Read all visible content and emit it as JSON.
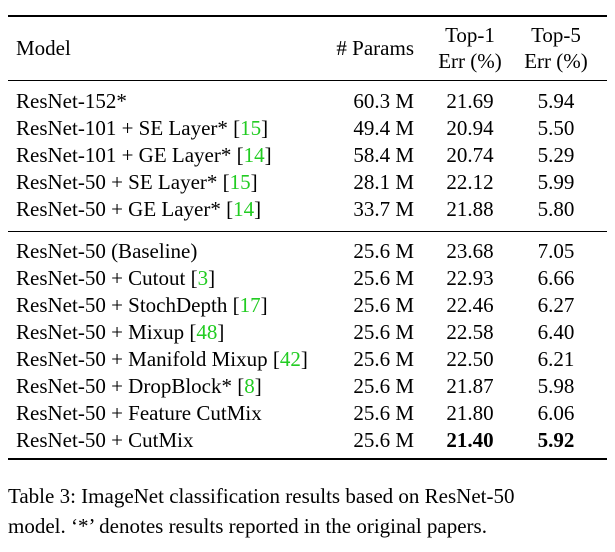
{
  "table": {
    "headers": {
      "model": "Model",
      "params": "# Params",
      "top1_line1": "Top-1",
      "top1_line2": "Err (%)",
      "top5_line1": "Top-5",
      "top5_line2": "Err (%)"
    },
    "groups": [
      [
        {
          "name": "ResNet-152*",
          "cite": "",
          "params": "60.3 M",
          "top1": "21.69",
          "top5": "5.94",
          "bold": false
        },
        {
          "name": "ResNet-101 + SE Layer*",
          "cite": "15",
          "params": "49.4 M",
          "top1": "20.94",
          "top5": "5.50",
          "bold": false
        },
        {
          "name": "ResNet-101 + GE Layer*",
          "cite": "14",
          "params": "58.4 M",
          "top1": "20.74",
          "top5": "5.29",
          "bold": false
        },
        {
          "name": "ResNet-50 + SE Layer*",
          "cite": "15",
          "params": "28.1 M",
          "top1": "22.12",
          "top5": "5.99",
          "bold": false
        },
        {
          "name": "ResNet-50 + GE Layer*",
          "cite": "14",
          "params": "33.7 M",
          "top1": "21.88",
          "top5": "5.80",
          "bold": false
        }
      ],
      [
        {
          "name": "ResNet-50 (Baseline)",
          "cite": "",
          "params": "25.6 M",
          "top1": "23.68",
          "top5": "7.05",
          "bold": false
        },
        {
          "name": "ResNet-50 + Cutout",
          "cite": "3",
          "params": "25.6 M",
          "top1": "22.93",
          "top5": "6.66",
          "bold": false
        },
        {
          "name": "ResNet-50 + StochDepth",
          "cite": "17",
          "params": "25.6 M",
          "top1": "22.46",
          "top5": "6.27",
          "bold": false
        },
        {
          "name": "ResNet-50 + Mixup",
          "cite": "48",
          "params": "25.6 M",
          "top1": "22.58",
          "top5": "6.40",
          "bold": false
        },
        {
          "name": "ResNet-50 + Manifold Mixup",
          "cite": "42",
          "params": "25.6 M",
          "top1": "22.50",
          "top5": "6.21",
          "bold": false
        },
        {
          "name": "ResNet-50 + DropBlock*",
          "cite": "8",
          "params": "25.6 M",
          "top1": "21.87",
          "top5": "5.98",
          "bold": false
        },
        {
          "name": "ResNet-50 + Feature CutMix",
          "cite": "",
          "params": "25.6 M",
          "top1": "21.80",
          "top5": "6.06",
          "bold": false
        },
        {
          "name": "ResNet-50 + CutMix",
          "cite": "",
          "params": "25.6 M",
          "top1": "21.40",
          "top5": "5.92",
          "bold": true
        }
      ]
    ]
  },
  "caption": {
    "line1": "Table 3: ImageNet classification results based on ResNet-50",
    "line2": "model. ‘*’ denotes results reported in the original papers."
  },
  "colors": {
    "citation": "#22cc22"
  }
}
